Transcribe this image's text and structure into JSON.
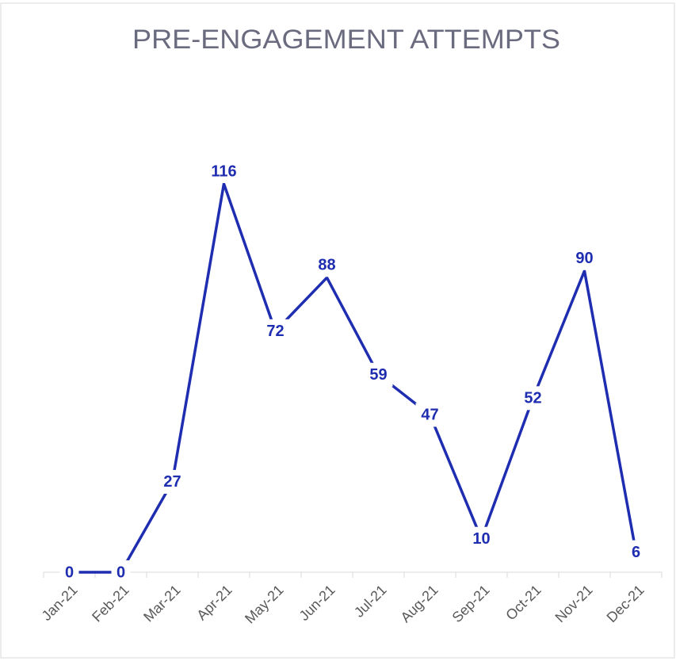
{
  "chart_data": {
    "type": "line",
    "title": "PRE-ENGAGEMENT ATTEMPTS",
    "categories": [
      "Jan-21",
      "Feb-21",
      "Mar-21",
      "Apr-21",
      "May-21",
      "Jun-21",
      "Jul-21",
      "Aug-21",
      "Sep-21",
      "Oct-21",
      "Nov-21",
      "Dec-21"
    ],
    "values": [
      0,
      0,
      27,
      116,
      72,
      88,
      59,
      47,
      10,
      52,
      90,
      6
    ],
    "color": "#1f2db0"
  }
}
